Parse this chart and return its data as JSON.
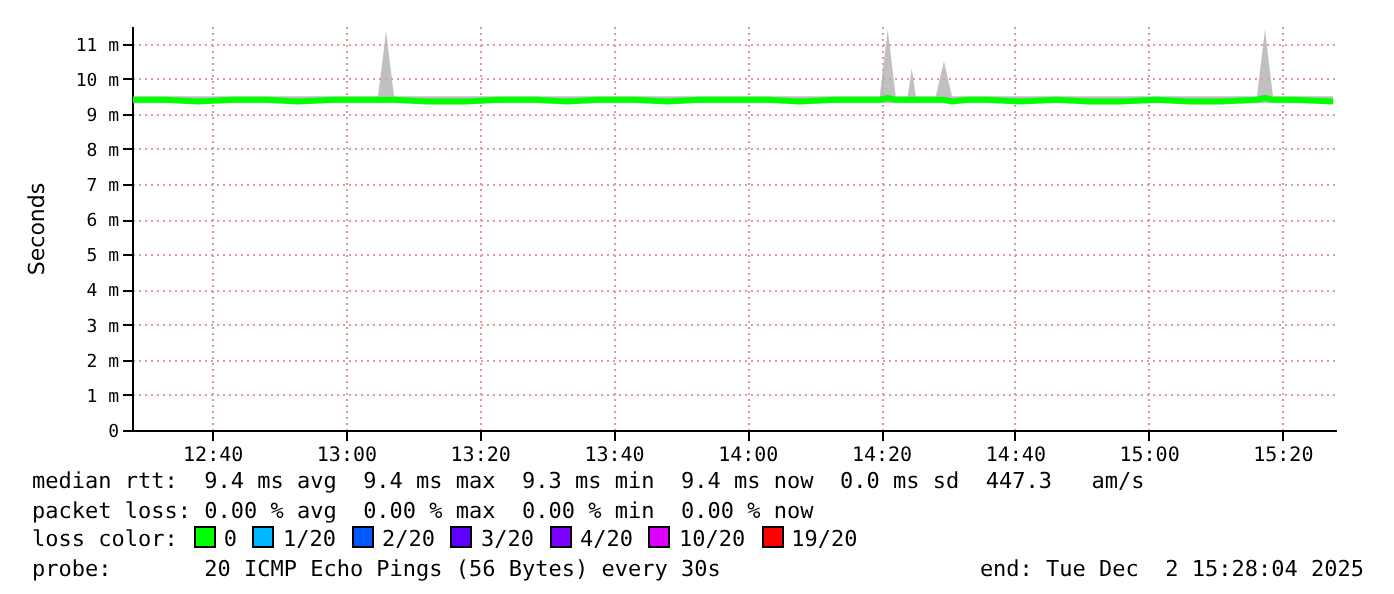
{
  "chart_data": {
    "type": "line",
    "ylabel": "Seconds",
    "legend_title": "loss color:",
    "legend": "bottom",
    "grid": true,
    "marker": "none",
    "line_style": "solid",
    "xlim": [
      12.467,
      15.467
    ],
    "ylim": [
      0,
      11.5
    ],
    "xticks": [
      {
        "value": 12.6667,
        "label": "12:40"
      },
      {
        "value": 13,
        "label": "13:00"
      },
      {
        "value": 13.3333,
        "label": "13:20"
      },
      {
        "value": 13.6667,
        "label": "13:40"
      },
      {
        "value": 14,
        "label": "14:00"
      },
      {
        "value": 14.3333,
        "label": "14:20"
      },
      {
        "value": 14.6667,
        "label": "14:40"
      },
      {
        "value": 15,
        "label": "15:00"
      },
      {
        "value": 15.3333,
        "label": "15:20"
      }
    ],
    "yticks": [
      0,
      {
        "value": 1,
        "label": "1 m"
      },
      {
        "value": 2,
        "label": "2 m"
      },
      {
        "value": 3,
        "label": "3 m"
      },
      {
        "value": 4,
        "label": "4 m"
      },
      {
        "value": 5,
        "label": "5 m"
      },
      {
        "value": 6,
        "label": "6 m"
      },
      {
        "value": 7,
        "label": "7 m"
      },
      {
        "value": 8,
        "label": "8 m"
      },
      {
        "value": 9,
        "label": "9 m"
      },
      {
        "value": 10,
        "label": "10 m"
      },
      {
        "value": 11,
        "label": "11 m"
      }
    ],
    "x": [
      12.47,
      12.55,
      12.63,
      12.72,
      12.8,
      12.88,
      12.97,
      13.05,
      13.08,
      13.1,
      13.12,
      13.2,
      13.3,
      13.38,
      13.47,
      13.55,
      13.63,
      13.72,
      13.8,
      13.88,
      13.97,
      14.05,
      14.13,
      14.22,
      14.3,
      14.33,
      14.35,
      14.37,
      14.4,
      14.41,
      14.42,
      14.47,
      14.49,
      14.51,
      14.55,
      14.6,
      14.68,
      14.77,
      14.85,
      14.93,
      15.02,
      15.1,
      15.18,
      15.27,
      15.29,
      15.31,
      15.36,
      15.46
    ],
    "series": [
      {
        "name": "0",
        "color": "#00ff00",
        "values": [
          9.4,
          9.4,
          9.35,
          9.4,
          9.4,
          9.35,
          9.4,
          9.4,
          9.4,
          9.4,
          9.4,
          9.35,
          9.35,
          9.4,
          9.4,
          9.35,
          9.4,
          9.4,
          9.35,
          9.4,
          9.4,
          9.4,
          9.35,
          9.4,
          9.4,
          9.4,
          9.45,
          9.4,
          9.4,
          9.4,
          9.4,
          9.4,
          9.4,
          9.35,
          9.4,
          9.4,
          9.35,
          9.4,
          9.35,
          9.35,
          9.4,
          9.35,
          9.35,
          9.4,
          9.45,
          9.4,
          9.4,
          9.35
        ],
        "lower": [
          9.3,
          9.3,
          9.3,
          9.3,
          9.3,
          9.3,
          9.3,
          9.3,
          9.3,
          9.3,
          9.3,
          9.3,
          9.3,
          9.3,
          9.3,
          9.3,
          9.3,
          9.3,
          9.3,
          9.3,
          9.3,
          9.3,
          9.3,
          9.3,
          9.3,
          9.3,
          9.3,
          9.3,
          9.3,
          9.3,
          9.3,
          9.3,
          9.3,
          9.3,
          9.3,
          9.3,
          9.3,
          9.3,
          9.3,
          9.3,
          9.3,
          9.3,
          9.3,
          9.3,
          9.3,
          9.3,
          9.3,
          9.3
        ],
        "upper": [
          9.5,
          9.5,
          9.5,
          9.5,
          9.5,
          9.5,
          9.5,
          9.5,
          9.5,
          11.35,
          9.5,
          9.5,
          9.5,
          9.5,
          9.5,
          9.5,
          9.5,
          9.5,
          9.5,
          9.5,
          9.5,
          9.5,
          9.5,
          9.5,
          9.5,
          9.5,
          11.4,
          9.5,
          9.5,
          10.3,
          9.5,
          9.5,
          10.5,
          9.5,
          9.5,
          9.5,
          9.5,
          9.5,
          9.5,
          9.5,
          9.5,
          9.5,
          9.5,
          9.5,
          11.4,
          9.5,
          9.5,
          9.5
        ]
      },
      {
        "name": "1/20",
        "color": "#00b8ff",
        "values": [
          null,
          null,
          null,
          null,
          null,
          null,
          null,
          null,
          null,
          null,
          null,
          null,
          null,
          null,
          null,
          null,
          null,
          null,
          null,
          null,
          null,
          null,
          null,
          null,
          null,
          null,
          null,
          null,
          null,
          null,
          null,
          null,
          null,
          null,
          null,
          null,
          null,
          null,
          null,
          null,
          null,
          null,
          null,
          null,
          null,
          null,
          null,
          null
        ]
      },
      {
        "name": "2/20",
        "color": "#0059ff",
        "values": [
          null,
          null,
          null,
          null,
          null,
          null,
          null,
          null,
          null,
          null,
          null,
          null,
          null,
          null,
          null,
          null,
          null,
          null,
          null,
          null,
          null,
          null,
          null,
          null,
          null,
          null,
          null,
          null,
          null,
          null,
          null,
          null,
          null,
          null,
          null,
          null,
          null,
          null,
          null,
          null,
          null,
          null,
          null,
          null,
          null,
          null,
          null,
          null
        ]
      },
      {
        "name": "3/20",
        "color": "#5e00ff",
        "values": [
          null,
          null,
          null,
          null,
          null,
          null,
          null,
          null,
          null,
          null,
          null,
          null,
          null,
          null,
          null,
          null,
          null,
          null,
          null,
          null,
          null,
          null,
          null,
          null,
          null,
          null,
          null,
          null,
          null,
          null,
          null,
          null,
          null,
          null,
          null,
          null,
          null,
          null,
          null,
          null,
          null,
          null,
          null,
          null,
          null,
          null,
          null,
          null
        ]
      },
      {
        "name": "4/20",
        "color": "#7e00ff",
        "values": [
          null,
          null,
          null,
          null,
          null,
          null,
          null,
          null,
          null,
          null,
          null,
          null,
          null,
          null,
          null,
          null,
          null,
          null,
          null,
          null,
          null,
          null,
          null,
          null,
          null,
          null,
          null,
          null,
          null,
          null,
          null,
          null,
          null,
          null,
          null,
          null,
          null,
          null,
          null,
          null,
          null,
          null,
          null,
          null,
          null,
          null,
          null,
          null
        ]
      },
      {
        "name": "10/20",
        "color": "#dd00ff",
        "values": [
          null,
          null,
          null,
          null,
          null,
          null,
          null,
          null,
          null,
          null,
          null,
          null,
          null,
          null,
          null,
          null,
          null,
          null,
          null,
          null,
          null,
          null,
          null,
          null,
          null,
          null,
          null,
          null,
          null,
          null,
          null,
          null,
          null,
          null,
          null,
          null,
          null,
          null,
          null,
          null,
          null,
          null,
          null,
          null,
          null,
          null,
          null,
          null
        ]
      },
      {
        "name": "19/20",
        "color": "#ff0000",
        "values": [
          null,
          null,
          null,
          null,
          null,
          null,
          null,
          null,
          null,
          null,
          null,
          null,
          null,
          null,
          null,
          null,
          null,
          null,
          null,
          null,
          null,
          null,
          null,
          null,
          null,
          null,
          null,
          null,
          null,
          null,
          null,
          null,
          null,
          null,
          null,
          null,
          null,
          null,
          null,
          null,
          null,
          null,
          null,
          null,
          null,
          null,
          null,
          null
        ]
      }
    ],
    "annotations": [
      "median rtt:  9.4 ms avg  9.4 ms max  9.3 ms min  9.4 ms now  0.0 ms sd  447.3   am/s",
      "packet loss: 0.00 % avg  0.00 % max  0.00 % min  0.00 % now",
      "probe:       20 ICMP Echo Pings (56 Bytes) every 30s",
      "end: Tue Dec  2 15:28:04 2025"
    ]
  }
}
